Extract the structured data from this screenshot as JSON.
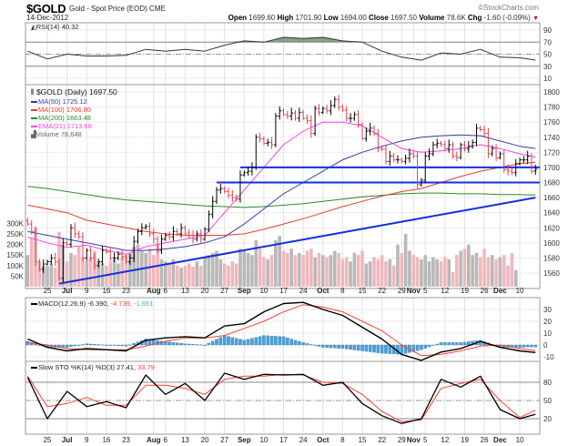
{
  "header": {
    "symbol": "$GOLD",
    "name": "Gold - Spot Price (EOD)",
    "exchange": "CME",
    "date": "14-Dec-2012",
    "copyright": "©StockCharts.com",
    "open_label": "Open",
    "open": "1699.60",
    "high_label": "High",
    "high": "1701.90",
    "low_label": "Low",
    "low": "1694.00",
    "close_label": "Close",
    "close": "1697.50",
    "volume_label": "Volume",
    "volume": "78.6K",
    "chg_label": "Chg",
    "chg": "-1.60 (-0.09%)",
    "chg_direction": "down"
  },
  "legends": {
    "rsi": "RSI(14) 40.32",
    "price": "$GOLD (Daily) 1697.50",
    "ma50": "MA(50) 1725.12",
    "ma100": "MA(100) 1706.80",
    "ma200": "MA(200) 1663.48",
    "ema21": "EMA(21) 1713.68",
    "volume": "Volume 78,648",
    "macd_name": "MACD(12,26,9)",
    "macd": "-6.390,",
    "macd_signal": "-4.739,",
    "macd_hist": "-1.651",
    "sto_name": "Slow STO %K(14) %D(3)",
    "sto_k": "27.41,",
    "sto_d": "33.79"
  },
  "colors": {
    "up_bar": "#000000",
    "down_bar": "#e8404a",
    "ma50": "#3a3aa8",
    "ma100": "#e83c2c",
    "ma200": "#2a8a2a",
    "ema21": "#ee44ee",
    "trendline": "#1030e0",
    "volume_up": "#b8b8b8",
    "volume_down": "#f0b8bc",
    "macd": "#000000",
    "macd_signal": "#ff4030",
    "macd_hist": "#4a9fd8",
    "rsi": "#333333",
    "rsi_fill": "#6a8a6a",
    "sto_k": "#000000",
    "sto_d": "#ff4030"
  },
  "chart_data": {
    "type": "line",
    "date_ticks": [
      {
        "i": 5,
        "t": "25"
      },
      {
        "i": 10,
        "t": "Jul",
        "bold": true
      },
      {
        "i": 15,
        "t": "9"
      },
      {
        "i": 20,
        "t": "16"
      },
      {
        "i": 25,
        "t": "23"
      },
      {
        "i": 32,
        "t": "Aug",
        "bold": true
      },
      {
        "i": 35,
        "t": "6"
      },
      {
        "i": 40,
        "t": "13"
      },
      {
        "i": 45,
        "t": "20"
      },
      {
        "i": 50,
        "t": "27"
      },
      {
        "i": 55,
        "t": "Sep",
        "bold": true
      },
      {
        "i": 60,
        "t": "10"
      },
      {
        "i": 65,
        "t": "17"
      },
      {
        "i": 70,
        "t": "24"
      },
      {
        "i": 75,
        "t": "Oct",
        "bold": true
      },
      {
        "i": 80,
        "t": "8"
      },
      {
        "i": 85,
        "t": "15"
      },
      {
        "i": 90,
        "t": "22"
      },
      {
        "i": 95,
        "t": "29"
      },
      {
        "i": 98,
        "t": "Nov",
        "bold": true
      },
      {
        "i": 101,
        "t": "5"
      },
      {
        "i": 106,
        "t": "12"
      },
      {
        "i": 111,
        "t": "19"
      },
      {
        "i": 116,
        "t": "26"
      },
      {
        "i": 120,
        "t": "Dec",
        "bold": true
      },
      {
        "i": 125,
        "t": "10"
      }
    ],
    "weekly_samples": [
      0,
      5,
      10,
      15,
      20,
      25,
      30,
      35,
      40,
      45,
      50,
      55,
      60,
      65,
      70,
      75,
      80,
      85,
      90,
      95,
      100,
      105,
      110,
      115,
      120,
      125,
      129
    ],
    "price": {
      "yticks": [
        1800,
        1780,
        1760,
        1740,
        1720,
        1700,
        1680,
        1660,
        1640,
        1620,
        1600,
        1580,
        1560
      ],
      "ylim": [
        1545,
        1810
      ],
      "close": [
        1625,
        1615,
        1575,
        1565,
        1572,
        1575,
        1580,
        1575,
        1553,
        1600,
        1598,
        1620,
        1612,
        1608,
        1580,
        1590,
        1580,
        1570,
        1575,
        1590,
        1588,
        1580,
        1580,
        1585,
        1582,
        1575,
        1580,
        1602,
        1615,
        1620,
        1622,
        1612,
        1605,
        1590,
        1605,
        1610,
        1608,
        1615,
        1612,
        1620,
        1613,
        1610,
        1605,
        1612,
        1605,
        1618,
        1638,
        1655,
        1670,
        1672,
        1668,
        1663,
        1660,
        1658,
        1690,
        1693,
        1695,
        1700,
        1740,
        1738,
        1732,
        1733,
        1730,
        1768,
        1775,
        1770,
        1768,
        1772,
        1765,
        1773,
        1765,
        1762,
        1745,
        1778,
        1773,
        1778,
        1775,
        1782,
        1790,
        1780,
        1776,
        1765,
        1765,
        1770,
        1757,
        1738,
        1748,
        1752,
        1745,
        1725,
        1724,
        1708,
        1715,
        1710,
        1710,
        1708,
        1712,
        1718,
        1715,
        1677,
        1683,
        1715,
        1718,
        1730,
        1732,
        1730,
        1725,
        1730,
        1715,
        1713,
        1730,
        1725,
        1728,
        1733,
        1752,
        1750,
        1745,
        1718,
        1725,
        1713,
        1718,
        1697,
        1695,
        1693,
        1705,
        1710,
        1710,
        1715,
        1695,
        1697.5
      ],
      "ma50": [
        1615,
        1610,
        1605,
        1600,
        1595,
        1590,
        1590,
        1592,
        1595,
        1600,
        1608,
        1625,
        1645,
        1665,
        1680,
        1695,
        1710,
        1720,
        1728,
        1735,
        1740,
        1742,
        1743,
        1742,
        1735,
        1728,
        1725.12
      ],
      "ma100": [
        1650,
        1645,
        1640,
        1630,
        1625,
        1620,
        1615,
        1612,
        1610,
        1610,
        1610,
        1612,
        1618,
        1625,
        1632,
        1640,
        1648,
        1655,
        1662,
        1668,
        1672,
        1680,
        1688,
        1695,
        1700,
        1705,
        1706.8
      ],
      "ma200": [
        1675,
        1672,
        1668,
        1664,
        1660,
        1657,
        1655,
        1653,
        1651,
        1649,
        1648,
        1647,
        1648,
        1650,
        1652,
        1655,
        1658,
        1661,
        1663,
        1665,
        1666,
        1666,
        1665,
        1665,
        1664,
        1664,
        1663.48
      ],
      "ema21": [
        1608,
        1600,
        1594,
        1597,
        1590,
        1585,
        1595,
        1600,
        1605,
        1610,
        1640,
        1670,
        1700,
        1730,
        1748,
        1760,
        1760,
        1755,
        1740,
        1725,
        1720,
        1722,
        1725,
        1730,
        1725,
        1718,
        1713.68
      ],
      "trendline": {
        "from": {
          "i": 8,
          "p": 1546
        },
        "to": {
          "i": 129,
          "p": 1660
        }
      },
      "support_lines": [
        {
          "p": 1700,
          "from_i": 54
        },
        {
          "p": 1680,
          "from_i": 48
        }
      ]
    },
    "volume": {
      "yticks": [
        "300K",
        "250K",
        "200K",
        "150K",
        "100K",
        "50K"
      ],
      "ytick_values": [
        300,
        250,
        200,
        150,
        100,
        50
      ],
      "values_k": [
        150,
        230,
        280,
        120,
        100,
        95,
        110,
        90,
        260,
        200,
        120,
        160,
        150,
        190,
        140,
        130,
        140,
        170,
        120,
        110,
        100,
        120,
        130,
        110,
        140,
        150,
        160,
        190,
        200,
        170,
        160,
        180,
        150,
        200,
        130,
        120,
        110,
        130,
        100,
        90,
        100,
        110,
        95,
        120,
        100,
        140,
        150,
        160,
        170,
        130,
        110,
        100,
        120,
        110,
        180,
        170,
        160,
        150,
        220,
        180,
        140,
        130,
        150,
        220,
        240,
        170,
        160,
        180,
        150,
        160,
        150,
        170,
        180,
        140,
        160,
        150,
        140,
        150,
        170,
        160,
        130,
        140,
        120,
        160,
        150,
        170,
        110,
        120,
        140,
        130,
        150,
        120,
        130,
        100,
        200,
        160,
        250,
        170,
        150,
        140,
        130,
        150,
        120,
        140,
        130,
        120,
        140,
        130,
        70,
        150,
        170,
        180,
        200,
        150,
        160,
        140,
        180,
        140,
        150,
        130,
        140,
        150,
        100,
        160,
        78.6
      ]
    },
    "rsi": {
      "yticks": [
        90,
        70,
        50,
        30,
        10
      ],
      "ylim": [
        0,
        100
      ],
      "overbought": 70,
      "oversold": 30,
      "values": [
        55,
        42,
        50,
        47,
        47,
        48,
        58,
        55,
        58,
        55,
        65,
        72,
        70,
        78,
        76,
        78,
        72,
        70,
        55,
        45,
        40,
        52,
        50,
        58,
        45,
        44,
        40.32
      ]
    },
    "macd": {
      "yticks": [
        30,
        20,
        10,
        0,
        -10
      ],
      "ylim": [
        -15,
        38
      ],
      "macd": [
        5,
        -2,
        -5,
        -3,
        -4,
        -5,
        4,
        6,
        7,
        6,
        16,
        18,
        28,
        35,
        36,
        30,
        25,
        15,
        5,
        -8,
        -13,
        -6,
        -3,
        3,
        -2,
        -5,
        -6.39
      ],
      "signal": [
        2,
        0,
        -3,
        -4,
        -4,
        -4,
        -1,
        3,
        6,
        6,
        8,
        14,
        20,
        28,
        34,
        32,
        28,
        20,
        12,
        0,
        -9,
        -8,
        -5,
        -1,
        0,
        -3,
        -4.739
      ]
    },
    "sto": {
      "yticks": [
        80,
        50,
        20
      ],
      "ylim": [
        0,
        100
      ],
      "k": [
        88,
        20,
        65,
        40,
        48,
        38,
        92,
        60,
        78,
        50,
        95,
        85,
        93,
        92,
        93,
        75,
        80,
        45,
        25,
        12,
        20,
        85,
        72,
        90,
        35,
        20,
        27.41
      ],
      "d": [
        90,
        40,
        45,
        55,
        42,
        42,
        75,
        75,
        70,
        60,
        85,
        90,
        90,
        93,
        92,
        80,
        78,
        60,
        32,
        15,
        18,
        70,
        78,
        85,
        50,
        22,
        33.79
      ]
    }
  }
}
